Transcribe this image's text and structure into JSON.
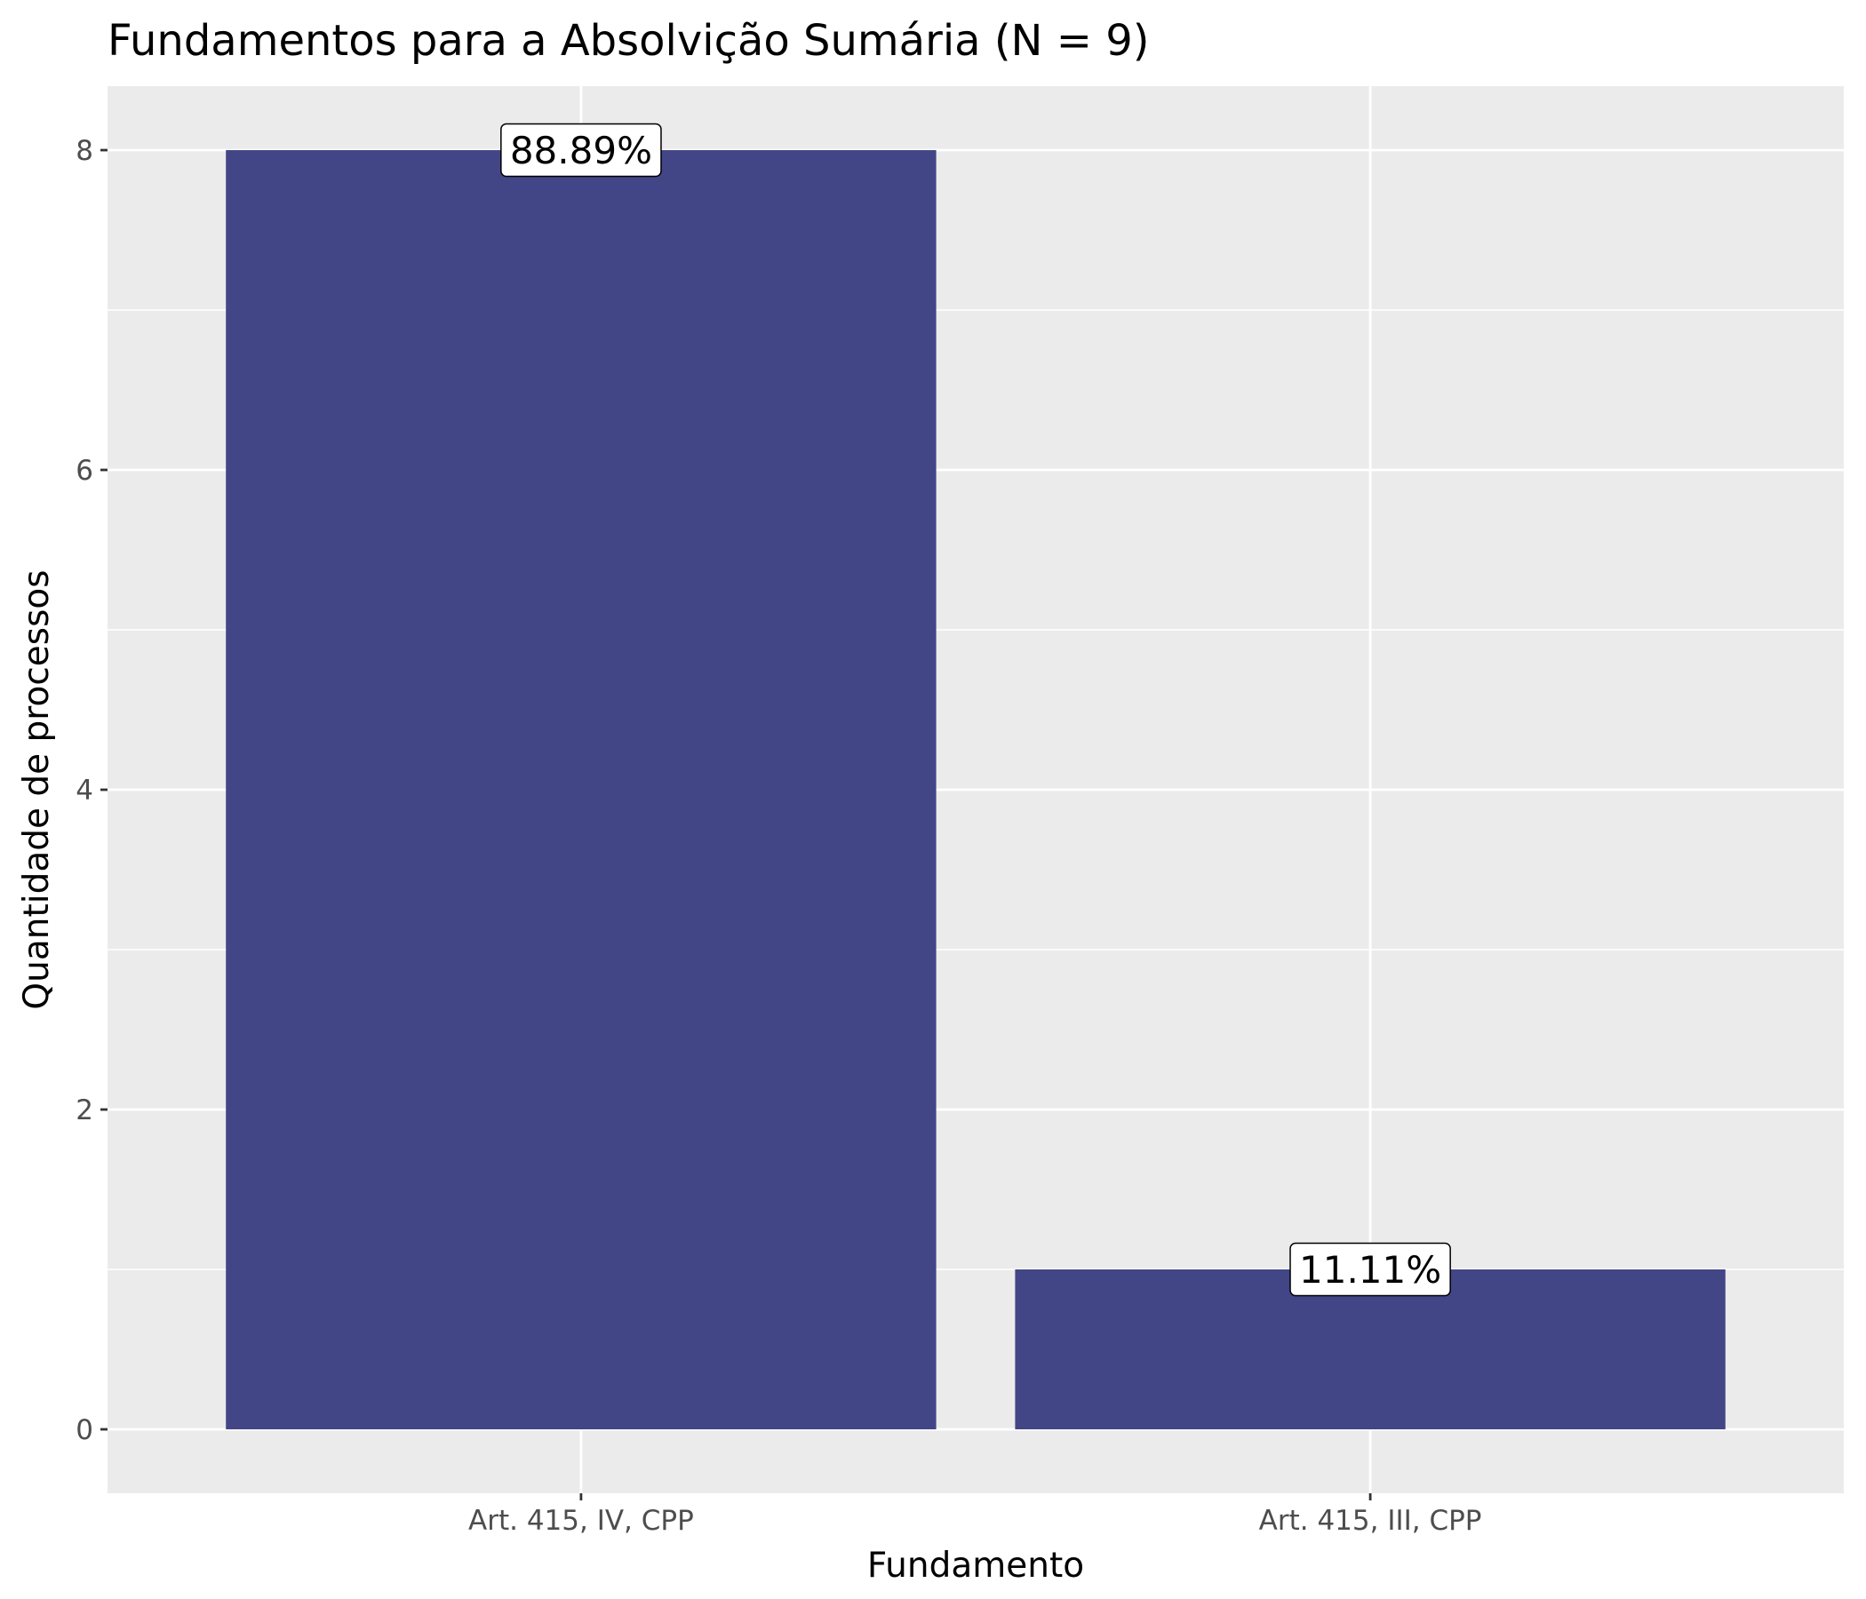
{
  "chart_data": {
    "type": "bar",
    "title": "Fundamentos para a Absolvição Sumária (N = 9)",
    "xlabel": "Fundamento",
    "ylabel": "Quantidade de processos",
    "categories": [
      "Art. 415, IV, CPP",
      "Art. 415, III, CPP"
    ],
    "values": [
      8,
      1
    ],
    "data_labels": [
      "88.89%",
      "11.11%"
    ],
    "ylim": [
      -0.4,
      8.4
    ],
    "y_ticks": [
      0,
      2,
      4,
      6,
      8
    ],
    "grid": true,
    "legend": "none",
    "colors": {
      "bar": "#424686",
      "panel_background": "#ebebeb",
      "grid_major": "#ffffff",
      "grid_minor": "#ffffff",
      "tick_label": "#4d4d4d"
    }
  }
}
